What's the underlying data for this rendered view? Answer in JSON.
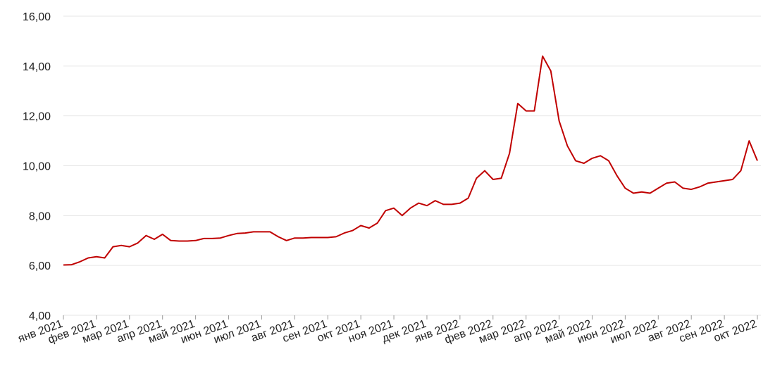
{
  "chart_data": {
    "type": "line",
    "categories": [
      "янв 2021",
      null,
      null,
      null,
      "фев 2021",
      null,
      null,
      null,
      "мар 2021",
      null,
      null,
      null,
      "апр 2021",
      null,
      null,
      null,
      "май 2021",
      null,
      null,
      null,
      "июн 2021",
      null,
      null,
      null,
      "июл 2021",
      null,
      null,
      null,
      "авг 2021",
      null,
      null,
      null,
      "сен 2021",
      null,
      null,
      null,
      "окт 2021",
      null,
      null,
      null,
      "ноя 2021",
      null,
      null,
      null,
      "дек 2021",
      null,
      null,
      null,
      "янв 2022",
      null,
      null,
      null,
      "фев 2022",
      null,
      null,
      null,
      "мар 2022",
      null,
      null,
      null,
      "апр 2022",
      null,
      null,
      null,
      "май 2022",
      null,
      null,
      null,
      "июн 2022",
      null,
      null,
      null,
      "июл 2022",
      null,
      null,
      null,
      "авг 2022",
      null,
      null,
      null,
      "сен 2022",
      null,
      null,
      null,
      "окт 2022"
    ],
    "series": [
      {
        "color": "#c00000",
        "values": [
          6.02,
          6.03,
          6.15,
          6.3,
          6.35,
          6.3,
          6.75,
          6.8,
          6.75,
          6.9,
          7.2,
          7.05,
          7.25,
          7.0,
          6.98,
          6.98,
          7.0,
          7.08,
          7.08,
          7.1,
          7.2,
          7.28,
          7.3,
          7.35,
          7.35,
          7.35,
          7.15,
          7.0,
          7.1,
          7.1,
          7.12,
          7.12,
          7.12,
          7.15,
          7.3,
          7.4,
          7.6,
          7.5,
          7.7,
          8.2,
          8.3,
          8.0,
          8.3,
          8.5,
          8.4,
          8.6,
          8.45,
          8.45,
          8.5,
          8.7,
          9.5,
          9.8,
          9.45,
          9.5,
          10.5,
          12.5,
          12.2,
          12.2,
          14.4,
          13.8,
          11.8,
          10.8,
          10.2,
          10.1,
          10.3,
          10.4,
          10.2,
          9.6,
          9.1,
          8.9,
          8.95,
          8.9,
          9.1,
          9.3,
          9.35,
          9.1,
          9.05,
          9.15,
          9.3,
          9.35,
          9.4,
          9.45,
          9.8,
          11.0,
          10.2
        ]
      }
    ],
    "ylim": [
      4,
      16
    ],
    "yticks": [
      {
        "value": 4,
        "label": "4,00"
      },
      {
        "value": 6,
        "label": "6,00"
      },
      {
        "value": 8,
        "label": "8,00"
      },
      {
        "value": 10,
        "label": "10,00"
      },
      {
        "value": 12,
        "label": "12,00"
      },
      {
        "value": 14,
        "label": "14,00"
      },
      {
        "value": 16,
        "label": "16,00"
      }
    ],
    "grid": true
  }
}
